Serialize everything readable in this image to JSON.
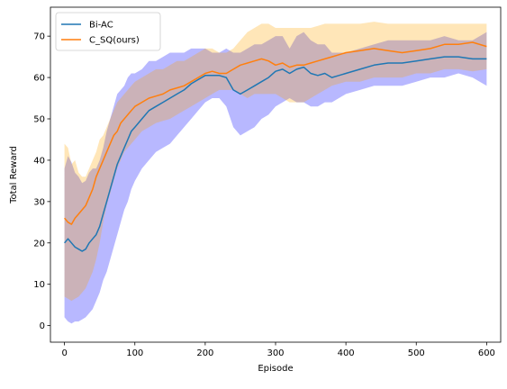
{
  "chart_data": {
    "type": "line",
    "title": "",
    "xlabel": "Episode",
    "ylabel": "Total Reward",
    "xlim": [
      -20,
      620
    ],
    "ylim": [
      -4,
      77
    ],
    "xticks": [
      0,
      100,
      200,
      300,
      400,
      500,
      600
    ],
    "yticks": [
      0,
      10,
      20,
      30,
      40,
      50,
      60,
      70
    ],
    "grid": false,
    "legend_position": "top-left",
    "series": [
      {
        "name": "Bi-AC",
        "color": "#1f77b4",
        "band_color": "#0000ff",
        "x": [
          0,
          5,
          10,
          15,
          20,
          25,
          30,
          35,
          40,
          45,
          50,
          55,
          60,
          65,
          70,
          75,
          80,
          85,
          90,
          95,
          100,
          110,
          120,
          130,
          140,
          150,
          160,
          170,
          180,
          190,
          200,
          210,
          220,
          230,
          240,
          250,
          260,
          270,
          280,
          290,
          300,
          310,
          320,
          330,
          340,
          350,
          360,
          370,
          380,
          390,
          400,
          420,
          440,
          460,
          480,
          500,
          520,
          540,
          560,
          580,
          600
        ],
        "mean": [
          20,
          21,
          20,
          19,
          18.5,
          18,
          18.5,
          20,
          21,
          22,
          24,
          27,
          30,
          33,
          36,
          39,
          41,
          43,
          45,
          47,
          48,
          50,
          52,
          53,
          54,
          55,
          56,
          57,
          58.5,
          59.5,
          60.5,
          60.5,
          60.5,
          60,
          57,
          56,
          57,
          58,
          59,
          60,
          61.5,
          62,
          61,
          62,
          62.5,
          61,
          60.5,
          61,
          60,
          60.5,
          61,
          62,
          63,
          63.5,
          63.5,
          64,
          64.5,
          65,
          65,
          64.5,
          64.5
        ],
        "lower": [
          2,
          1,
          0.5,
          1,
          1,
          1.5,
          2,
          3,
          4,
          6,
          8,
          11,
          13,
          16,
          19,
          22,
          25,
          28,
          30,
          33,
          35,
          38,
          40,
          42,
          43,
          44,
          46,
          48,
          50,
          52,
          54,
          55,
          55,
          53,
          48,
          46,
          47,
          48,
          50,
          51,
          53,
          54,
          55,
          54,
          54,
          53,
          53,
          54,
          54,
          55,
          56,
          57,
          58,
          58,
          58,
          59,
          60,
          60,
          61,
          60,
          58
        ]
      },
      {
        "name": "C_SQ(ours)",
        "color": "#ff7f0e",
        "band_color": "#ffa500",
        "x": [
          0,
          5,
          10,
          15,
          20,
          25,
          30,
          35,
          40,
          45,
          50,
          55,
          60,
          65,
          70,
          75,
          80,
          85,
          90,
          95,
          100,
          110,
          120,
          130,
          140,
          150,
          160,
          170,
          180,
          190,
          200,
          210,
          220,
          230,
          240,
          250,
          260,
          270,
          280,
          290,
          300,
          310,
          320,
          330,
          340,
          350,
          360,
          370,
          380,
          390,
          400,
          420,
          440,
          460,
          480,
          500,
          520,
          540,
          560,
          580,
          600
        ],
        "mean": [
          26,
          25,
          24.5,
          26,
          27,
          28,
          29,
          31,
          33,
          36,
          38,
          40,
          42,
          44,
          46,
          47,
          49,
          50,
          51,
          52,
          53,
          54,
          55,
          55.5,
          56,
          57,
          57.5,
          58,
          59,
          60,
          61,
          61.5,
          61,
          61,
          62,
          63,
          63.5,
          64,
          64.5,
          64,
          63,
          63.5,
          62.5,
          63,
          63,
          63.5,
          64,
          64.5,
          65,
          65.5,
          66,
          66.5,
          67,
          66.5,
          66,
          66.5,
          67,
          68,
          68,
          68.5,
          67.5
        ],
        "lower": [
          7,
          6.5,
          6,
          6.5,
          7,
          8,
          9,
          11,
          13,
          16,
          20,
          25,
          29,
          32,
          35,
          38,
          40,
          42,
          43,
          44,
          45,
          47,
          48,
          49,
          49.5,
          50,
          51,
          52,
          53,
          54,
          55,
          56,
          57,
          57,
          57,
          56,
          55,
          56,
          56,
          56,
          56,
          55,
          54,
          54,
          54,
          55,
          56,
          57,
          58,
          58.5,
          59,
          59,
          60,
          60,
          60,
          61,
          61,
          62,
          62,
          61.5,
          62
        ],
        "upper": [
          44,
          43,
          39,
          40,
          37,
          36,
          36,
          38,
          40,
          42,
          45,
          46,
          48,
          50,
          52,
          54,
          55,
          56,
          57,
          58,
          59,
          60,
          61,
          62,
          62,
          63,
          64,
          64,
          65,
          66,
          67,
          67,
          66,
          66,
          67,
          69,
          71,
          72,
          73,
          73,
          72,
          72,
          72,
          72,
          72,
          72,
          72.5,
          73,
          73,
          73,
          73,
          73,
          73.5,
          73,
          73,
          73,
          73,
          73,
          73,
          73,
          73
        ]
      }
    ]
  }
}
